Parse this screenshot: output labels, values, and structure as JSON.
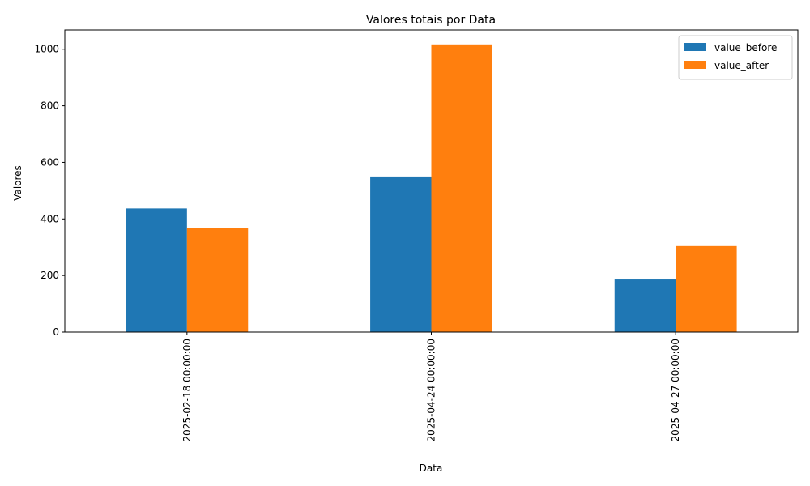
{
  "chart_data": {
    "type": "bar",
    "title": "Valores totais por Data",
    "xlabel": "Data",
    "ylabel": "Valores",
    "categories": [
      "2025-02-18 00:00:00",
      "2025-04-24 00:00:00",
      "2025-04-27 00:00:00"
    ],
    "series": [
      {
        "name": "value_before",
        "values": [
          437,
          550,
          186
        ],
        "color": "#1f77b4"
      },
      {
        "name": "value_after",
        "values": [
          367,
          1017,
          304
        ],
        "color": "#ff7f0e"
      }
    ],
    "ylim": [
      0,
      1068
    ],
    "yticks": [
      0,
      200,
      400,
      600,
      800,
      1000
    ],
    "grid": false,
    "legend_position": "top-right"
  }
}
